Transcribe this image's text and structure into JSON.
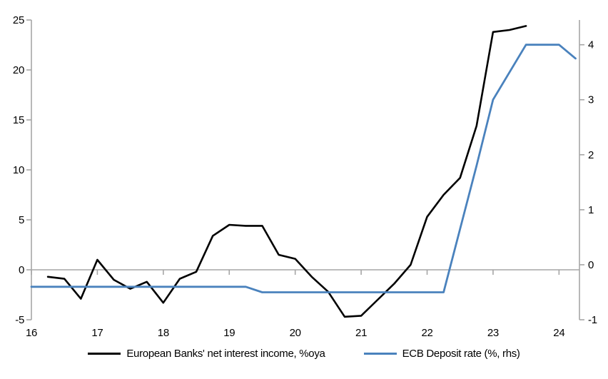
{
  "chart_data": {
    "type": "line",
    "title": "",
    "legend_position": "bottom",
    "grid": "zero-line-only",
    "axis_color": "#a6a6a6",
    "zero_line_color": "#a6a6a6",
    "x_axis": {
      "min": 16,
      "max": 24.31,
      "ticks": [
        {
          "v": 16,
          "label": "16"
        },
        {
          "v": 17,
          "label": "17"
        },
        {
          "v": 18,
          "label": "18"
        },
        {
          "v": 19,
          "label": "19"
        },
        {
          "v": 20,
          "label": "20"
        },
        {
          "v": 21,
          "label": "21"
        },
        {
          "v": 22,
          "label": "22"
        },
        {
          "v": 23,
          "label": "23"
        },
        {
          "v": 24,
          "label": "24"
        }
      ]
    },
    "left_axis": {
      "min": -5,
      "max": 25,
      "ticks": [
        {
          "v": 25,
          "label": "25"
        },
        {
          "v": 20,
          "label": "20"
        },
        {
          "v": 15,
          "label": "15"
        },
        {
          "v": 10,
          "label": "10"
        },
        {
          "v": 5,
          "label": "5"
        },
        {
          "v": 0,
          "label": "0"
        },
        {
          "v": -5,
          "label": "-5"
        }
      ]
    },
    "right_axis": {
      "min": -1,
      "max": 4.45,
      "ticks": [
        {
          "v": 4,
          "label": "4"
        },
        {
          "v": 3,
          "label": "3"
        },
        {
          "v": 2,
          "label": "2"
        },
        {
          "v": 1,
          "label": "1"
        },
        {
          "v": 0,
          "label": "0"
        },
        {
          "v": -1,
          "label": "-1"
        }
      ]
    },
    "series": [
      {
        "name": "European Banks' net interest income, %oya",
        "axis": "left",
        "color": "#000000",
        "width": 2.6,
        "x": [
          16.25,
          16.5,
          16.75,
          17.0,
          17.25,
          17.5,
          17.75,
          18.0,
          18.25,
          18.5,
          18.75,
          19.0,
          19.25,
          19.5,
          19.75,
          20.0,
          20.25,
          20.5,
          20.75,
          21.0,
          21.25,
          21.5,
          21.75,
          22.0,
          22.25,
          22.5,
          22.75,
          23.0,
          23.25,
          23.5
        ],
        "values": [
          -0.7,
          -0.9,
          -2.9,
          1.0,
          -1.0,
          -1.9,
          -1.2,
          -3.3,
          -0.9,
          -0.2,
          3.4,
          4.5,
          4.4,
          4.4,
          1.5,
          1.1,
          -0.7,
          -2.2,
          -4.7,
          -4.6,
          -3.0,
          -1.4,
          0.5,
          5.3,
          7.5,
          9.2,
          14.4,
          23.8,
          24.0,
          24.4
        ]
      },
      {
        "name": "ECB Deposit rate (%, rhs)",
        "axis": "right",
        "color": "#4a82bd",
        "width": 2.8,
        "x": [
          16.0,
          19.25,
          19.5,
          22.25,
          22.5,
          22.75,
          23.0,
          23.25,
          23.5,
          23.75,
          24.0,
          24.25
        ],
        "values": [
          -0.4,
          -0.4,
          -0.5,
          -0.5,
          0.65,
          1.8,
          3.0,
          3.5,
          4.0,
          4.0,
          4.0,
          3.75
        ]
      }
    ]
  }
}
